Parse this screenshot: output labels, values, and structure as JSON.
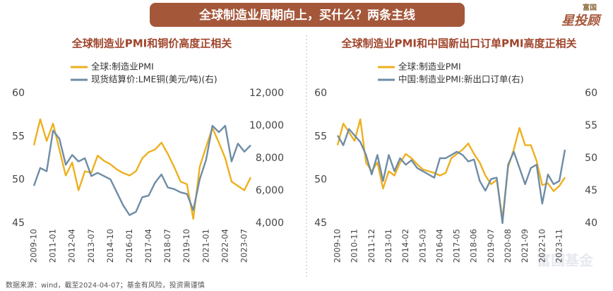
{
  "header": {
    "title": "全球制造业周期向上，买什么？两条主线"
  },
  "logo": {
    "top": "富国",
    "main": "星投顾"
  },
  "footer": {
    "source": "数据来源：wind，截至2024-04-07；基金有风险，投资需谨慎"
  },
  "watermark": {
    "text": "富国基金"
  },
  "chart_data": [
    {
      "type": "line",
      "title": "全球制造业PMI和铜价高度正相关",
      "categories": [
        "2009-10",
        null,
        null,
        "2011-01",
        null,
        null,
        "2012-04",
        null,
        null,
        "2013-07",
        null,
        null,
        "2014-10",
        null,
        null,
        "2016-01",
        null,
        null,
        "2017-04",
        null,
        null,
        "2018-07",
        null,
        null,
        "2019-10",
        null,
        null,
        "2021-01",
        null,
        null,
        "2022-04",
        null,
        null,
        "2023-07",
        null
      ],
      "series": [
        {
          "name": "全球:制造业PMI",
          "color": "#EDB01F",
          "values": [
            54.0,
            57.0,
            54.5,
            56.5,
            53.5,
            50.5,
            52.0,
            48.8,
            51.0,
            50.8,
            52.8,
            52.2,
            51.8,
            51.2,
            50.8,
            50.5,
            51.0,
            52.5,
            53.2,
            53.5,
            54.3,
            53.0,
            51.5,
            49.8,
            49.5,
            45.5,
            51.5,
            53.8,
            56.0,
            54.3,
            52.5,
            49.8,
            49.3,
            48.8,
            50.3
          ]
        },
        {
          "name": "现货结算价:LME铜(美元/吨)(右)",
          "color": "#6E8CA6",
          "axis": "y2",
          "values": [
            6300,
            7400,
            7200,
            9700,
            9200,
            7600,
            8200,
            7800,
            8000,
            6900,
            7100,
            6900,
            6700,
            5900,
            5100,
            4500,
            4700,
            5600,
            5700,
            6500,
            7000,
            6200,
            6100,
            5900,
            5800,
            4800,
            6700,
            7900,
            10000,
            9600,
            10000,
            7800,
            8900,
            8400,
            8800
          ]
        }
      ],
      "ylim": [
        45,
        60
      ],
      "yticks": [
        45,
        50,
        55,
        60
      ],
      "y2lim": [
        4000,
        12000
      ],
      "y2ticks": [
        {
          "value": 4000,
          "label": "4,000"
        },
        {
          "value": 6000,
          "label": "6,000"
        },
        {
          "value": 8000,
          "label": "8,000"
        },
        {
          "value": 10000,
          "label": "10,000"
        },
        {
          "value": 12000,
          "label": "12,000"
        }
      ],
      "grid": false
    },
    {
      "type": "line",
      "title": "全球制造业PMI和中国新出口订单PMI高度正相关",
      "categories": [
        "2009-10",
        null,
        null,
        "2010-11",
        null,
        null,
        "2011-12",
        null,
        null,
        "2013-01",
        null,
        null,
        "2014-02",
        null,
        null,
        "2015-03",
        null,
        null,
        "2016-04",
        null,
        null,
        "2017-05",
        null,
        null,
        "2018-06",
        null,
        null,
        "2019-07",
        null,
        null,
        "2020-08",
        null,
        null,
        "2021-09",
        null,
        null,
        "2022-10",
        null,
        null,
        "2023-11",
        null
      ],
      "series": [
        {
          "name": "全球:制造业PMI",
          "color": "#EDB01F",
          "values": [
            54.0,
            56.5,
            55.5,
            54.5,
            57.0,
            52.0,
            51.0,
            52.0,
            49.0,
            51.0,
            50.5,
            52.0,
            53.0,
            52.5,
            51.8,
            51.2,
            51.0,
            50.8,
            50.5,
            50.8,
            52.5,
            53.0,
            53.5,
            54.2,
            53.0,
            52.0,
            50.5,
            49.5,
            50.0,
            45.5,
            51.5,
            53.5,
            56.0,
            54.0,
            54.0,
            52.2,
            49.4,
            49.6,
            48.7,
            49.3,
            50.3
          ]
        },
        {
          "name": "中国:制造业PMI:新出口订单(右)",
          "color": "#6E8CA6",
          "axis": "y2",
          "values": [
            53.5,
            52.0,
            54.5,
            53.5,
            52.5,
            50.5,
            47.5,
            50.5,
            46.5,
            50.5,
            48.0,
            50.0,
            49.0,
            49.7,
            48.5,
            48.0,
            47.5,
            47.0,
            50.0,
            50.0,
            50.5,
            51.0,
            50.5,
            49.5,
            49.8,
            46.5,
            45.0,
            46.8,
            47.0,
            40.0,
            49.0,
            51.0,
            48.5,
            46.0,
            48.5,
            49.0,
            43.0,
            47.5,
            46.0,
            46.5,
            51.3
          ]
        }
      ],
      "ylim": [
        45,
        60
      ],
      "yticks": [
        45,
        50,
        55,
        60
      ],
      "y2lim": [
        40,
        60
      ],
      "y2ticks": [
        40,
        45,
        50,
        55,
        60
      ],
      "grid": false
    }
  ]
}
